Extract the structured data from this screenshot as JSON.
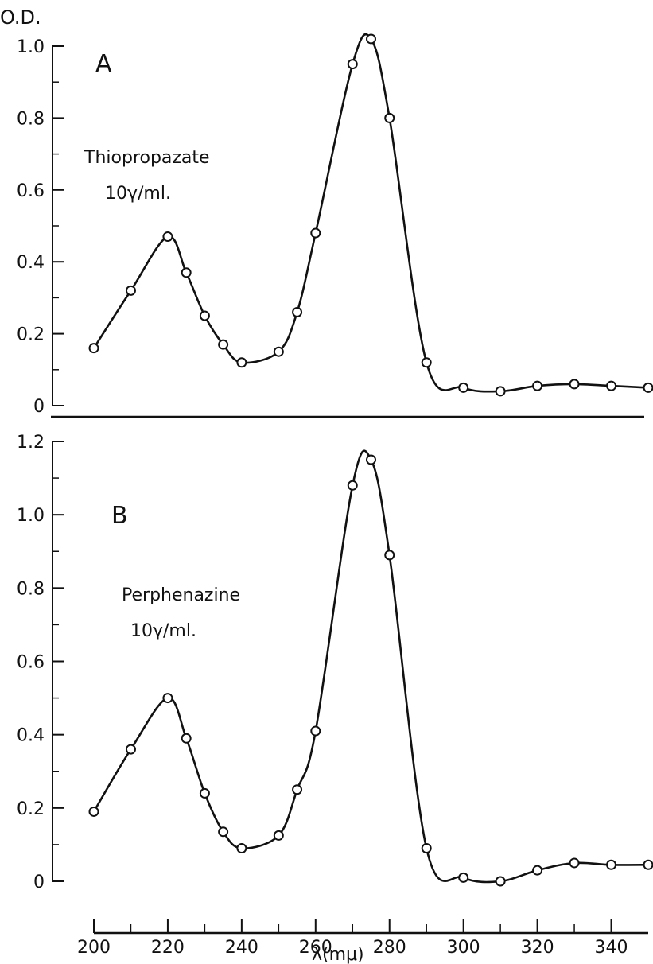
{
  "chart_data": [
    {
      "type": "line",
      "panel": "A",
      "ylabel": "O.D.",
      "annotation_line1": "Thiopropazate",
      "annotation_line2": "10γ/ml.",
      "ylim": [
        0,
        1.0
      ],
      "yticks": [
        "0",
        "0.2",
        "0.4",
        "0.6",
        "0.8",
        "1.0"
      ],
      "series": [
        {
          "x": [
            200,
            210,
            220,
            225,
            230,
            235,
            240,
            250,
            255,
            260,
            270,
            275,
            280,
            290,
            300,
            310,
            320,
            330,
            340,
            350
          ],
          "y": [
            0.16,
            0.32,
            0.47,
            0.37,
            0.25,
            0.17,
            0.12,
            0.15,
            0.26,
            0.48,
            0.95,
            1.02,
            0.8,
            0.12,
            0.05,
            0.04,
            0.055,
            0.06,
            0.055,
            0.05
          ]
        }
      ]
    },
    {
      "type": "line",
      "panel": "B",
      "annotation_line1": "Perphenazine",
      "annotation_line2": "10γ/ml.",
      "xlabel": "λ(mμ)",
      "xlim": [
        200,
        350
      ],
      "xticks": [
        "200",
        "220",
        "240",
        "260",
        "280",
        "300",
        "320",
        "340"
      ],
      "ylim": [
        0,
        1.2
      ],
      "yticks": [
        "0",
        "0.2",
        "0.4",
        "0.6",
        "0.8",
        "1.0",
        "1.2"
      ],
      "series": [
        {
          "x": [
            200,
            210,
            220,
            225,
            230,
            235,
            240,
            250,
            255,
            260,
            270,
            275,
            280,
            290,
            300,
            310,
            320,
            330,
            340,
            350
          ],
          "y": [
            0.19,
            0.36,
            0.5,
            0.39,
            0.24,
            0.135,
            0.09,
            0.125,
            0.25,
            0.41,
            1.08,
            1.15,
            0.89,
            0.09,
            0.01,
            0.0,
            0.03,
            0.05,
            0.045,
            0.045
          ]
        }
      ]
    }
  ]
}
